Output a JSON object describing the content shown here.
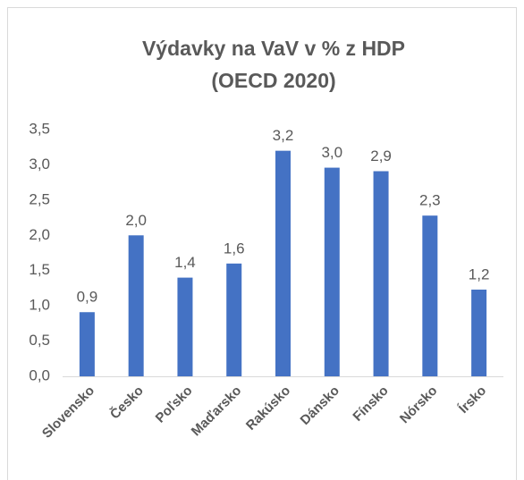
{
  "chart_data": {
    "type": "bar",
    "title": "Výdavky na VaV v % z HDP",
    "subtitle": "(OECD 2020)",
    "categories": [
      "Slovensko",
      "Česko",
      "Poľsko",
      "Maďarsko",
      "Rakúsko",
      "Dánsko",
      "Fínsko",
      "Nórsko",
      "Írsko"
    ],
    "values": [
      0.91,
      2.0,
      1.4,
      1.6,
      3.2,
      2.96,
      2.91,
      2.28,
      1.23
    ],
    "value_labels": [
      "0,9",
      "2,0",
      "1,4",
      "1,6",
      "3,2",
      "3,0",
      "2,9",
      "2,3",
      "1,2"
    ],
    "color": "#4472c4",
    "ylim": [
      0,
      3.5
    ],
    "yticks": [
      {
        "value": 0,
        "label": "0,0"
      },
      {
        "value": 0.5,
        "label": "0,5"
      },
      {
        "value": 1,
        "label": "1,0"
      },
      {
        "value": 1.5,
        "label": "1,5"
      },
      {
        "value": 2,
        "label": "2,0"
      },
      {
        "value": 2.5,
        "label": "2,5"
      },
      {
        "value": 3,
        "label": "3,0"
      },
      {
        "value": 3.5,
        "label": "3,5"
      }
    ],
    "grid": false
  }
}
